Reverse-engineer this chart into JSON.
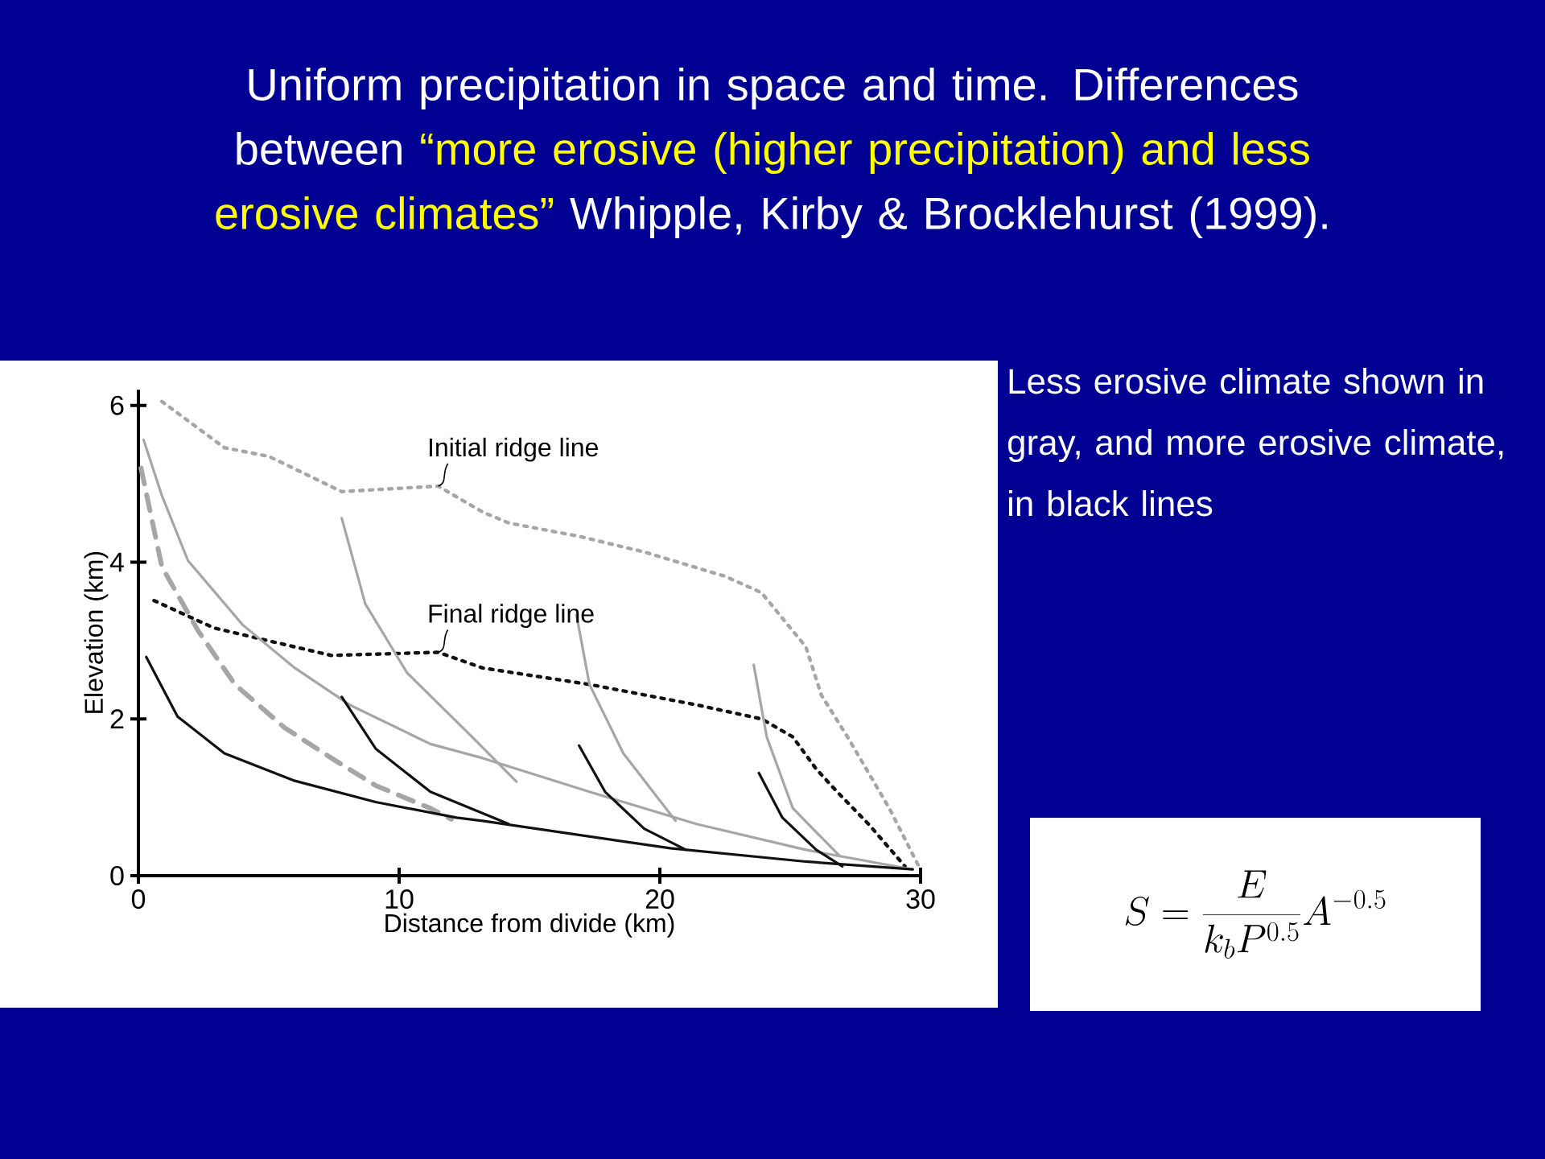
{
  "chart_data": {
    "type": "line",
    "title": "Uniform precipitation in space and time.  Differences between",
    "subtitle": "“more erosive (higher precipitation) and less erosive climates”",
    "xlabel": "Distance from divide (km)",
    "ylabel": "Elevation (km)",
    "xlim": [
      0,
      30
    ],
    "ylim": [
      0,
      6.2
    ],
    "xticks": [
      0,
      10,
      20,
      30
    ],
    "yticks": [
      0,
      2,
      4,
      6
    ],
    "line_style": "solid",
    "annotations": [
      "Whipple, Kirby & Brocklehurst (1999).",
      "Less erosive climate shown in gray, and more erosive climate, in black lines",
      "S=\\frac{E}{k_b P^{0.5}}A^{-0.5}",
      {
        "text": "Initial ridge line",
        "x": 11.5,
        "y": 4.97
      },
      {
        "text": "Final ridge line",
        "x": 11.5,
        "y": 2.85
      }
    ],
    "series": [
      {
        "color": "#a6a6a6",
        "line_style": "dotted",
        "x": [
          0.9,
          3.3,
          5.0,
          7.8,
          11.5,
          13.2,
          14.2,
          16.9,
          19.4,
          22.5,
          23.9,
          25.6,
          26.2,
          27.2,
          28.8,
          29.9
        ],
        "values": [
          6.05,
          5.46,
          5.35,
          4.9,
          4.97,
          4.64,
          4.5,
          4.33,
          4.13,
          3.82,
          3.61,
          2.92,
          2.3,
          1.77,
          0.86,
          0.14
        ]
      },
      {
        "color": "#111111",
        "line_style": "dotted",
        "x": [
          0.6,
          2.9,
          7.4,
          11.5,
          13.2,
          17.3,
          21.4,
          23.9,
          25.1,
          26.0,
          26.8,
          28.0,
          29.4
        ],
        "values": [
          3.51,
          3.16,
          2.81,
          2.85,
          2.65,
          2.44,
          2.18,
          2.0,
          1.77,
          1.36,
          1.07,
          0.66,
          0.12
        ]
      },
      {
        "color": "#a6a6a6",
        "line_style": "dashed",
        "x": [
          0.1,
          0.9,
          2.3,
          3.7,
          5.6,
          7.5,
          9.1,
          11.2,
          12.0
        ],
        "values": [
          5.2,
          3.94,
          3.12,
          2.44,
          1.89,
          1.48,
          1.15,
          0.86,
          0.72
        ]
      },
      {
        "color": "#a6a6a6",
        "x": [
          0.2,
          0.9,
          1.9,
          4.0,
          6.0,
          8.1,
          11.2,
          13.2,
          17.3,
          21.4,
          25.6,
          29.7
        ],
        "values": [
          5.56,
          4.85,
          4.02,
          3.2,
          2.65,
          2.18,
          1.68,
          1.5,
          1.07,
          0.66,
          0.33,
          0.08
        ]
      },
      {
        "color": "#111111",
        "x": [
          0.3,
          1.5,
          3.3,
          6.0,
          9.1,
          12.2,
          13.2,
          20.4,
          25.6,
          29.7
        ],
        "values": [
          2.79,
          2.03,
          1.56,
          1.21,
          0.94,
          0.74,
          0.7,
          0.35,
          0.18,
          0.08
        ]
      },
      {
        "color": "#a6a6a6",
        "x": [
          7.8,
          8.7,
          10.3,
          12.8,
          14.5
        ],
        "values": [
          4.56,
          3.47,
          2.59,
          1.77,
          1.2
        ]
      },
      {
        "color": "#111111",
        "x": [
          7.8,
          9.1,
          11.2,
          14.2
        ],
        "values": [
          2.28,
          1.62,
          1.07,
          0.66
        ]
      },
      {
        "color": "#a6a6a6",
        "x": [
          16.8,
          17.3,
          18.6,
          20.6
        ],
        "values": [
          3.33,
          2.44,
          1.56,
          0.7
        ]
      },
      {
        "color": "#111111",
        "x": [
          16.9,
          17.9,
          19.4,
          21.0
        ],
        "values": [
          1.66,
          1.07,
          0.6,
          0.33
        ]
      },
      {
        "color": "#a6a6a6",
        "x": [
          23.6,
          24.1,
          25.1,
          26.9
        ],
        "values": [
          2.69,
          1.77,
          0.86,
          0.25
        ]
      },
      {
        "color": "#111111",
        "x": [
          23.8,
          24.7,
          26.0,
          27.0
        ],
        "values": [
          1.31,
          0.74,
          0.33,
          0.12
        ]
      }
    ]
  }
}
